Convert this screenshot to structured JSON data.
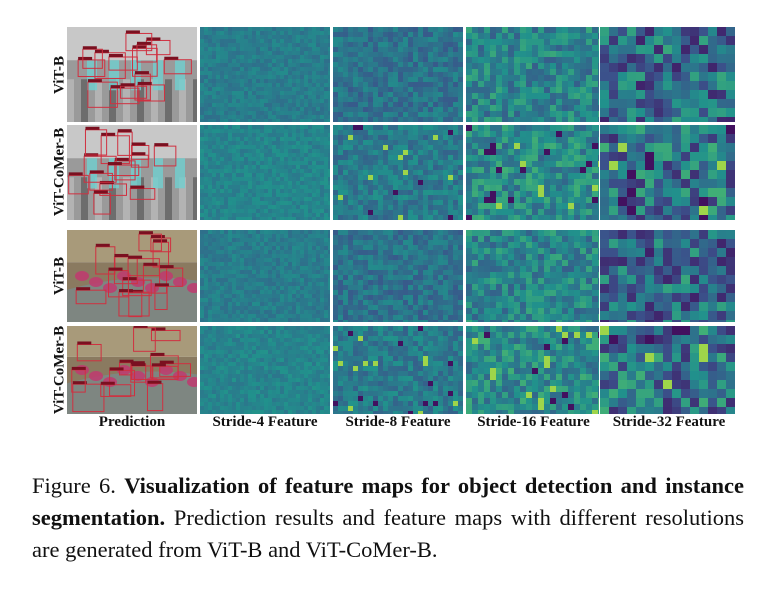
{
  "figure": {
    "row_labels": [
      "ViT-B",
      "ViT-CoMer-B",
      "ViT-B",
      "ViT-CoMer-B"
    ],
    "column_labels": [
      "Prediction",
      "Stride-4 Feature",
      "Stride-8 Feature",
      "Stride-16 Feature",
      "Stride-32 Feature"
    ],
    "colormap": [
      "#440154",
      "#3b528b",
      "#21918c",
      "#5ec962",
      "#fde725"
    ]
  },
  "caption": {
    "label": "Figure 6.",
    "title": "Visualization of feature maps for object detection and instance segmentation.",
    "text": "Prediction results and feature maps with different resolutions are generated from ViT-B and ViT-CoMer-B."
  }
}
